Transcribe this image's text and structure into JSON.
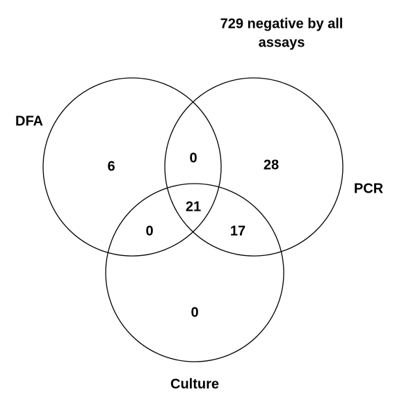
{
  "title_lines": [
    "729 negative by all",
    "assays"
  ],
  "sets": [
    {
      "label": "DFA"
    },
    {
      "label": "PCR"
    },
    {
      "label": "Culture"
    }
  ],
  "regions": [
    6,
    0,
    28,
    21,
    0,
    17,
    0
  ]
}
